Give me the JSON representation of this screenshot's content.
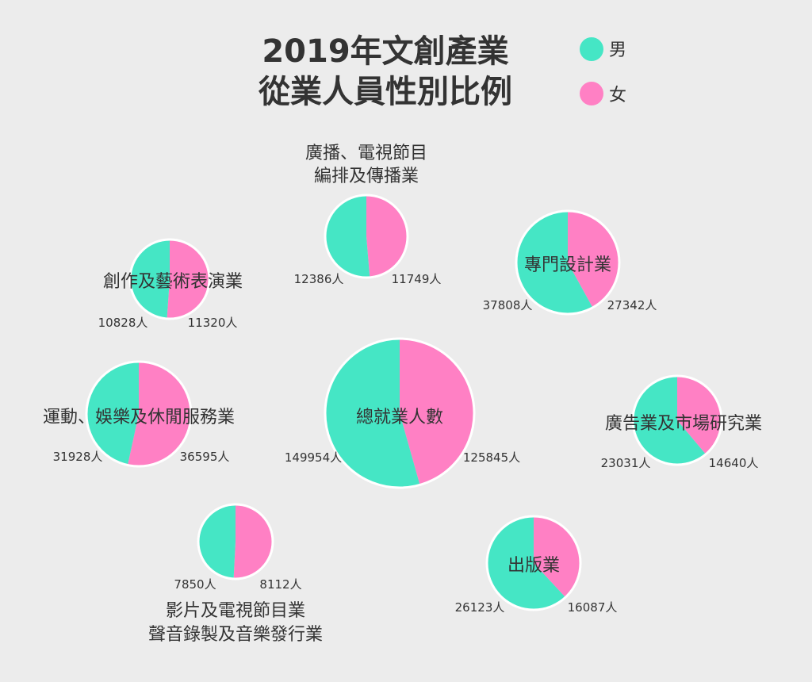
{
  "chart_data": {
    "type": "pie",
    "title_lines": [
      "2019年文創產業",
      "從業人員性別比例"
    ],
    "legend": [
      {
        "label": "男",
        "color": "#45e6c5"
      },
      {
        "label": "女",
        "color": "#ff80c4"
      }
    ],
    "legend_placement": "top-right",
    "unit": "人",
    "pies": [
      {
        "name_lines": [
          "總就業人數"
        ],
        "male": 149954,
        "female": 125845,
        "male_label": "149954人",
        "female_label": "125845人"
      },
      {
        "name_lines": [
          "廣播、電視節目",
          "編排及傳播業"
        ],
        "male": 12386,
        "female": 11749,
        "male_label": "12386人",
        "female_label": "11749人"
      },
      {
        "name_lines": [
          "專門設計業"
        ],
        "male": 37808,
        "female": 27342,
        "male_label": "37808人",
        "female_label": "27342人"
      },
      {
        "name_lines": [
          "創作及藝術表演業"
        ],
        "male": 10828,
        "female": 11320,
        "male_label": "10828人",
        "female_label": "11320人"
      },
      {
        "name_lines": [
          "運動、娛樂及休閒服務業"
        ],
        "male": 31928,
        "female": 36595,
        "male_label": "31928人",
        "female_label": "36595人"
      },
      {
        "name_lines": [
          "廣告業及市場研究業"
        ],
        "male": 23031,
        "female": 14640,
        "male_label": "23031人",
        "female_label": "14640人"
      },
      {
        "name_lines": [
          "影片及電視節目業",
          "聲音錄製及音樂發行業"
        ],
        "male": 7850,
        "female": 8112,
        "male_label": "7850人",
        "female_label": "8112人"
      },
      {
        "name_lines": [
          "出版業"
        ],
        "male": 26123,
        "female": 16087,
        "male_label": "26123人",
        "female_label": "16087人"
      }
    ]
  }
}
